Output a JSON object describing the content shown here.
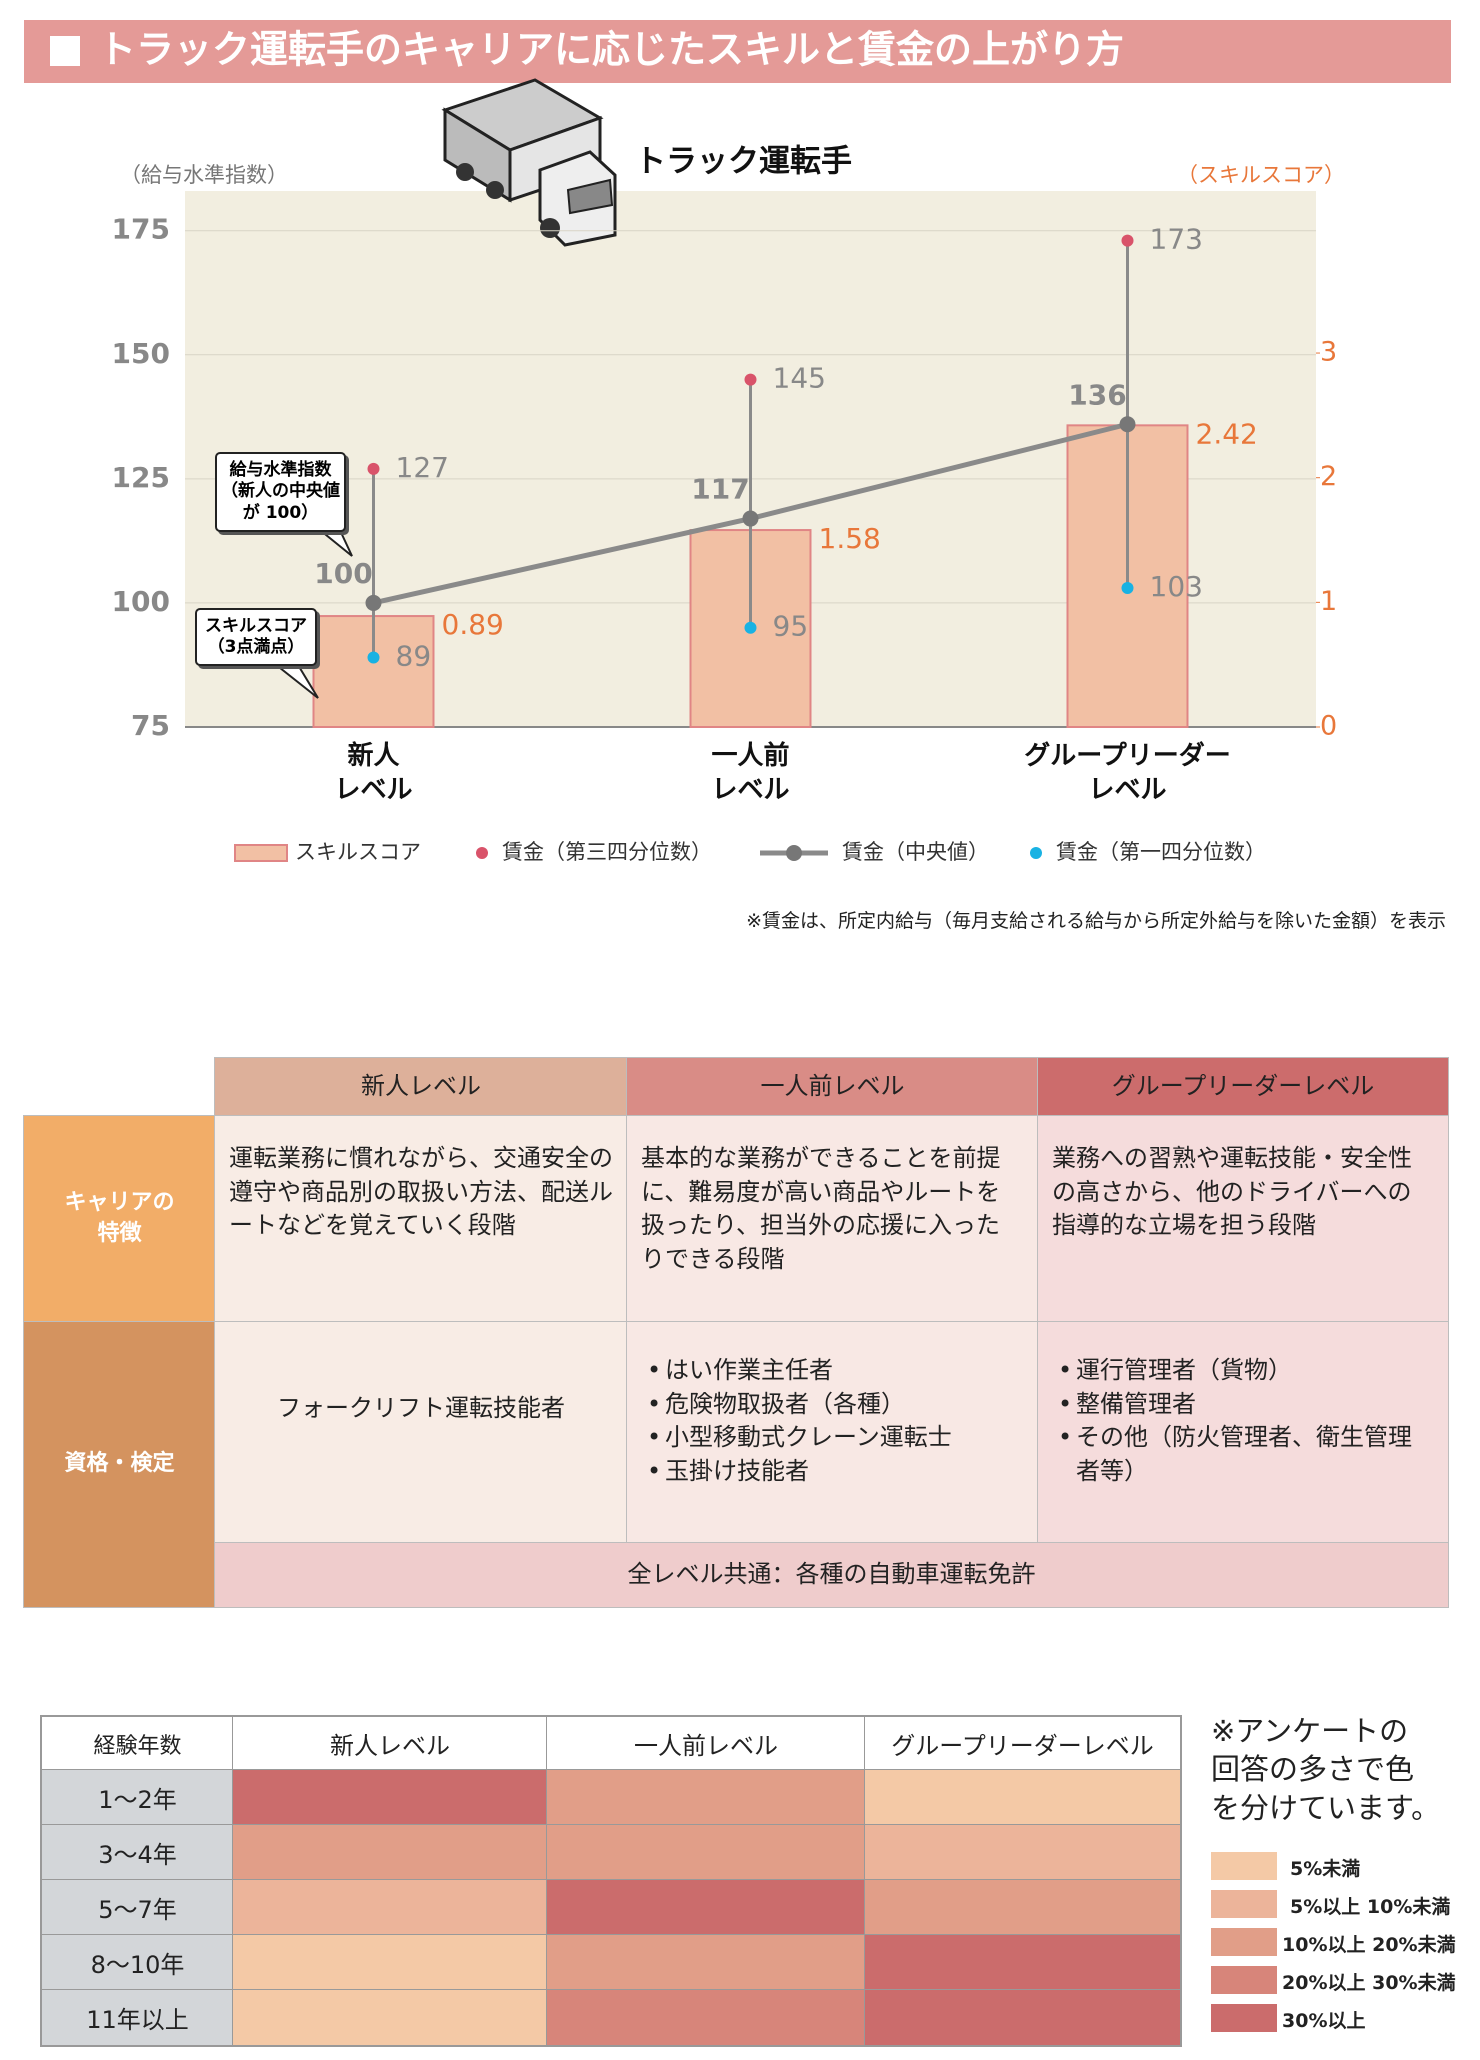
{
  "title": "トラック運転手のキャリアに応じたスキルと賃金の上がり方",
  "chart_data": {
    "type": "combo",
    "subtitle": "トラック運転手",
    "y_label": "（給与水準指数）",
    "y2_label": "（スキルスコア）",
    "categories": [
      "新人\nレベル",
      "一人前\nレベル",
      "グループリーダー\nレベル"
    ],
    "series": [
      {
        "name": "スキルスコア",
        "type": "bar",
        "axis": "y2",
        "color": "#f2c0a4",
        "edge_color": "#e08585",
        "label_color": "#e8773a",
        "values": [
          0.89,
          1.58,
          2.42
        ]
      },
      {
        "name": "賃金（第三四分位数）",
        "type": "marker",
        "color": "#d9536a",
        "values": [
          127,
          145,
          173
        ]
      },
      {
        "name": "賃金（中央値）",
        "type": "line",
        "color": "#8a8a8a",
        "values": [
          100,
          117,
          136
        ]
      },
      {
        "name": "賃金（第一四分位数）",
        "type": "marker",
        "color": "#19b2e3",
        "values": [
          89,
          95,
          103
        ]
      }
    ],
    "ylim": [
      75,
      183
    ],
    "yticks": [
      75,
      100,
      125,
      150,
      175
    ],
    "y2lim": [
      0,
      4.3
    ],
    "y2ticks": [
      0,
      1,
      2,
      3
    ],
    "grid": true,
    "annotations": [
      "給与水準指数\n（新人の中央値\nが 100）",
      "スキルスコア\n（3点満点）"
    ],
    "note": "※賃金は、所定内給与（毎月支給される給与から所定外給与を除いた金額）を表示"
  },
  "table": {
    "columns": [
      "新人レベル",
      "一人前レベル",
      "グループリーダーレベル"
    ],
    "rows": [
      {
        "label": "キャリアの\n特徴",
        "cells": [
          "運転業務に慣れながら、交通安全の遵守や商品別の取扱い方法、配送ルートなどを覚えていく段階",
          "基本的な業務ができることを前提に、難易度が高い商品やルートを扱ったり、担当外の応援に入ったりできる段階",
          "業務への習熟や運転技能・安全性の高さから、他のドライバーへの指導的な立場を担う段階"
        ]
      },
      {
        "label": "資格・検定",
        "cells": [
          [
            "フォークリフト運転技能者"
          ],
          [
            "はい作業主任者",
            "危険物取扱者（各種）",
            "小型移動式クレーン運転士",
            "玉掛け技能者"
          ],
          [
            "運行管理者（貨物）",
            "整備管理者",
            "その他（防火管理者、衛生管理者等）"
          ]
        ]
      }
    ],
    "footer": "全レベル共通：各種の自動車運転免許"
  },
  "heatmap": {
    "header": "経験年数",
    "columns": [
      "新人レベル",
      "一人前レベル",
      "グループリーダーレベル"
    ],
    "rows": [
      {
        "label": "1～2年",
        "levels": [
          4,
          2,
          0
        ]
      },
      {
        "label": "3～4年",
        "levels": [
          2,
          2,
          1
        ]
      },
      {
        "label": "5～7年",
        "levels": [
          1,
          4,
          2
        ]
      },
      {
        "label": "8～10年",
        "levels": [
          0,
          2,
          4
        ]
      },
      {
        "label": "11年以上",
        "levels": [
          0,
          3,
          4
        ]
      }
    ],
    "note": "※アンケートの\n回答の多さで色\nを分けています。",
    "legend": [
      {
        "label": "5%未満",
        "color": "#f4c9a6"
      },
      {
        "label": "5%以上 10%未満",
        "color": "#ecb49a"
      },
      {
        "label": "10%以上 20%未満",
        "color": "#e19e88"
      },
      {
        "label": "20%以上 30%未満",
        "color": "#d7857a"
      },
      {
        "label": "30%以上",
        "color": "#cb6c6c"
      }
    ]
  }
}
